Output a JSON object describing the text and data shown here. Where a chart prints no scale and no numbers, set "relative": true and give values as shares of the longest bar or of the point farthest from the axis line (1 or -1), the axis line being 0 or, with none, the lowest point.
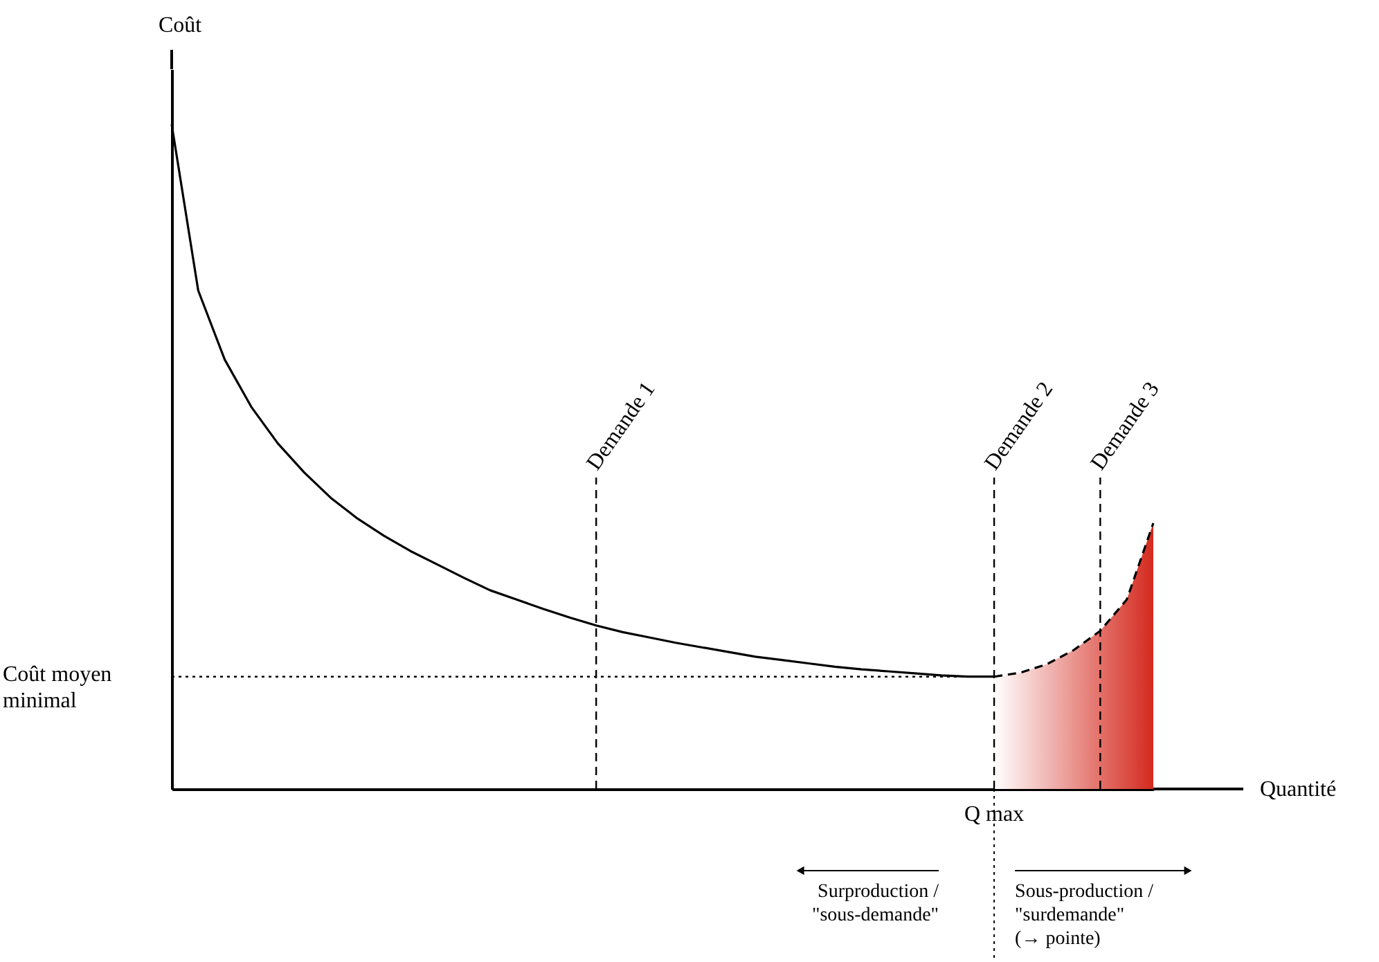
{
  "chart_data": {
    "type": "line",
    "relative": true,
    "xlabel": "Quantité",
    "ylabel": "Coût",
    "categories": [
      null,
      null,
      null,
      null,
      null,
      null,
      null,
      null,
      null,
      null,
      null,
      null,
      null,
      null,
      null,
      null,
      null,
      null,
      null,
      null,
      null,
      null,
      null,
      null,
      null,
      null,
      null,
      null,
      null,
      null,
      null,
      null,
      null,
      null,
      null,
      null,
      null,
      null
    ],
    "series": [
      {
        "color": "#000000",
        "line_style": "solid",
        "values": [
          1.0,
          0.75,
          0.646,
          0.575,
          0.52,
          0.476,
          0.438,
          0.407,
          0.381,
          0.358,
          0.338,
          0.318,
          0.299,
          0.285,
          0.271,
          0.258,
          0.246,
          0.236,
          0.228,
          0.22,
          0.213,
          0.206,
          0.199,
          0.194,
          0.189,
          0.184,
          0.18,
          0.177,
          0.174,
          0.171,
          0.169,
          0.169,
          null,
          null,
          null,
          null,
          null,
          null
        ]
      },
      {
        "type": "area",
        "color": "#d42a1e",
        "line_style": "dashed",
        "values": [
          null,
          null,
          null,
          null,
          null,
          null,
          null,
          null,
          null,
          null,
          null,
          null,
          null,
          null,
          null,
          null,
          null,
          null,
          null,
          null,
          null,
          null,
          null,
          null,
          null,
          null,
          null,
          null,
          null,
          null,
          null,
          0.169,
          0.175,
          0.188,
          0.209,
          0.238,
          0.285,
          0.4
        ]
      }
    ],
    "ref_lines": [
      {
        "axis": "y",
        "value": 0.169,
        "label": "Coût moyen\nminimal",
        "line_style": "dotted"
      }
    ],
    "annotations": [
      "Demande 1",
      "Demande 2",
      "Demande 3",
      "Q max",
      "Surproduction /\n\"sous-demande\"",
      "Sous-production /\n\"surdemande\"\n(→ pointe)"
    ],
    "grid": false
  }
}
